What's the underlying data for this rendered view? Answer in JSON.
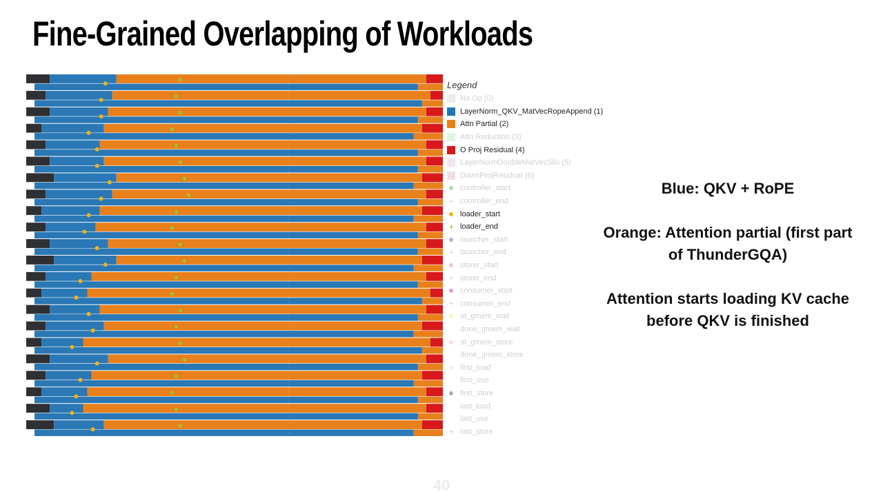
{
  "slide": {
    "title": "Fine-Grained Overlapping of Workloads",
    "page_number": "40"
  },
  "colors": {
    "background": "#ffffff",
    "no_op": "#2f3033",
    "qkv_blue": "#2a78b5",
    "attn_orange": "#e8801c",
    "o_proj_red": "#d7191c",
    "loader_start_yellow": "#f2b21c",
    "loader_end_green": "#9bc53d",
    "thin_line": "#a9a9a9"
  },
  "legend": {
    "title": "Legend",
    "items": [
      {
        "label": "No Op (0)",
        "marker": "square",
        "color": "#c8c8c8",
        "active": false
      },
      {
        "label": "LayerNorm_QKV_MatVecRopeAppend (1)",
        "marker": "square",
        "color": "#1f77b4",
        "active": true
      },
      {
        "label": "Attn Partial (2)",
        "marker": "square",
        "color": "#e8801c",
        "active": true
      },
      {
        "label": "Attn Reduction (3)",
        "marker": "square",
        "color": "#9ee39c",
        "active": false
      },
      {
        "label": "O Proj Residual (4)",
        "marker": "square",
        "color": "#d7191c",
        "active": true
      },
      {
        "label": "LayerNormDoubleMatVecSilu (5)",
        "marker": "square",
        "color": "#d9b3e6",
        "active": false
      },
      {
        "label": "DownProjResidual (6)",
        "marker": "square",
        "color": "#d9a7a7",
        "active": false
      },
      {
        "label": "controller_start",
        "marker": "dot",
        "color": "#4caf50",
        "active": false
      },
      {
        "label": "controller_end",
        "marker": "plus",
        "color": "#b0b0b0",
        "active": false
      },
      {
        "label": "loader_start",
        "marker": "dot",
        "color": "#f2b21c",
        "active": true
      },
      {
        "label": "loader_end",
        "marker": "plus",
        "color": "#9bc53d",
        "active": true
      },
      {
        "label": "launcher_start",
        "marker": "dot",
        "color": "#6a3d9a",
        "active": false
      },
      {
        "label": "launcher_end",
        "marker": "plus",
        "color": "#b0b0b0",
        "active": false
      },
      {
        "label": "storer_start",
        "marker": "dot",
        "color": "#e377c2",
        "active": false
      },
      {
        "label": "storer_end",
        "marker": "plus",
        "color": "#b0b0b0",
        "active": false
      },
      {
        "label": "consumer_start",
        "marker": "dot",
        "color": "#c2189b",
        "active": false
      },
      {
        "label": "consumer_end",
        "marker": "plus",
        "color": "#e0a0c0",
        "active": false
      },
      {
        "label": "at_gmem_wait",
        "marker": "dot",
        "color": "#e8e46a",
        "active": false
      },
      {
        "label": "done_gmem_wait",
        "marker": "none",
        "color": "#ffffff",
        "active": false
      },
      {
        "label": "at_gmem_store",
        "marker": "dot",
        "color": "#f5b3c8",
        "active": false
      },
      {
        "label": "done_gmem_store",
        "marker": "none",
        "color": "#ffffff",
        "active": false
      },
      {
        "label": "first_load",
        "marker": "dot",
        "color": "#bfe6f0",
        "active": false
      },
      {
        "label": "first_use",
        "marker": "none",
        "color": "#ffffff",
        "active": false
      },
      {
        "label": "first_store",
        "marker": "dot",
        "color": "#444444",
        "active": false
      },
      {
        "label": "last_load",
        "marker": "none",
        "color": "#ffffff",
        "active": false
      },
      {
        "label": "last_use",
        "marker": "none",
        "color": "#ffffff",
        "active": false
      },
      {
        "label": "last_store",
        "marker": "plus",
        "color": "#b0b0b0",
        "active": false
      }
    ]
  },
  "notes": [
    {
      "text": "Blue: QKV + RoPE"
    },
    {
      "text": "Orange: Attention partial (first part of ThunderGQA)"
    },
    {
      "text": "Attention starts loading KV cache before QKV is finished"
    }
  ],
  "timeline": {
    "rows": [
      {
        "noop": 0.04,
        "blue": 0.2,
        "orange": 0.96,
        "loader_start": 0.19,
        "loader_end": 0.37
      },
      {
        "noop": 0.03,
        "blue": 0.19,
        "orange": 0.97,
        "loader_start": 0.18,
        "loader_end": 0.36
      },
      {
        "noop": 0.04,
        "blue": 0.18,
        "orange": 0.96,
        "loader_start": 0.18,
        "loader_end": 0.37
      },
      {
        "noop": 0.02,
        "blue": 0.17,
        "orange": 0.95,
        "loader_start": 0.15,
        "loader_end": 0.35
      },
      {
        "noop": 0.03,
        "blue": 0.16,
        "orange": 0.96,
        "loader_start": 0.17,
        "loader_end": 0.36
      },
      {
        "noop": 0.04,
        "blue": 0.17,
        "orange": 0.96,
        "loader_start": 0.17,
        "loader_end": 0.37
      },
      {
        "noop": 0.05,
        "blue": 0.2,
        "orange": 0.95,
        "loader_start": 0.2,
        "loader_end": 0.38
      },
      {
        "noop": 0.03,
        "blue": 0.19,
        "orange": 0.96,
        "loader_start": 0.18,
        "loader_end": 0.39
      },
      {
        "noop": 0.02,
        "blue": 0.16,
        "orange": 0.95,
        "loader_start": 0.15,
        "loader_end": 0.36
      },
      {
        "noop": 0.03,
        "blue": 0.15,
        "orange": 0.96,
        "loader_start": 0.14,
        "loader_end": 0.35
      },
      {
        "noop": 0.04,
        "blue": 0.18,
        "orange": 0.96,
        "loader_start": 0.17,
        "loader_end": 0.37
      },
      {
        "noop": 0.05,
        "blue": 0.2,
        "orange": 0.95,
        "loader_start": 0.19,
        "loader_end": 0.38
      },
      {
        "noop": 0.03,
        "blue": 0.14,
        "orange": 0.96,
        "loader_start": 0.13,
        "loader_end": 0.36
      },
      {
        "noop": 0.02,
        "blue": 0.13,
        "orange": 0.97,
        "loader_start": 0.12,
        "loader_end": 0.35
      },
      {
        "noop": 0.04,
        "blue": 0.16,
        "orange": 0.96,
        "loader_start": 0.15,
        "loader_end": 0.37
      },
      {
        "noop": 0.03,
        "blue": 0.17,
        "orange": 0.95,
        "loader_start": 0.16,
        "loader_end": 0.36
      },
      {
        "noop": 0.02,
        "blue": 0.12,
        "orange": 0.97,
        "loader_start": 0.11,
        "loader_end": 0.37
      },
      {
        "noop": 0.04,
        "blue": 0.18,
        "orange": 0.96,
        "loader_start": 0.17,
        "loader_end": 0.38
      },
      {
        "noop": 0.03,
        "blue": 0.14,
        "orange": 0.95,
        "loader_start": 0.13,
        "loader_end": 0.36
      },
      {
        "noop": 0.02,
        "blue": 0.13,
        "orange": 0.96,
        "loader_start": 0.12,
        "loader_end": 0.35
      },
      {
        "noop": 0.04,
        "blue": 0.12,
        "orange": 0.96,
        "loader_start": 0.11,
        "loader_end": 0.36
      },
      {
        "noop": 0.05,
        "blue": 0.17,
        "orange": 0.95,
        "loader_start": 0.16,
        "loader_end": 0.37
      }
    ]
  }
}
